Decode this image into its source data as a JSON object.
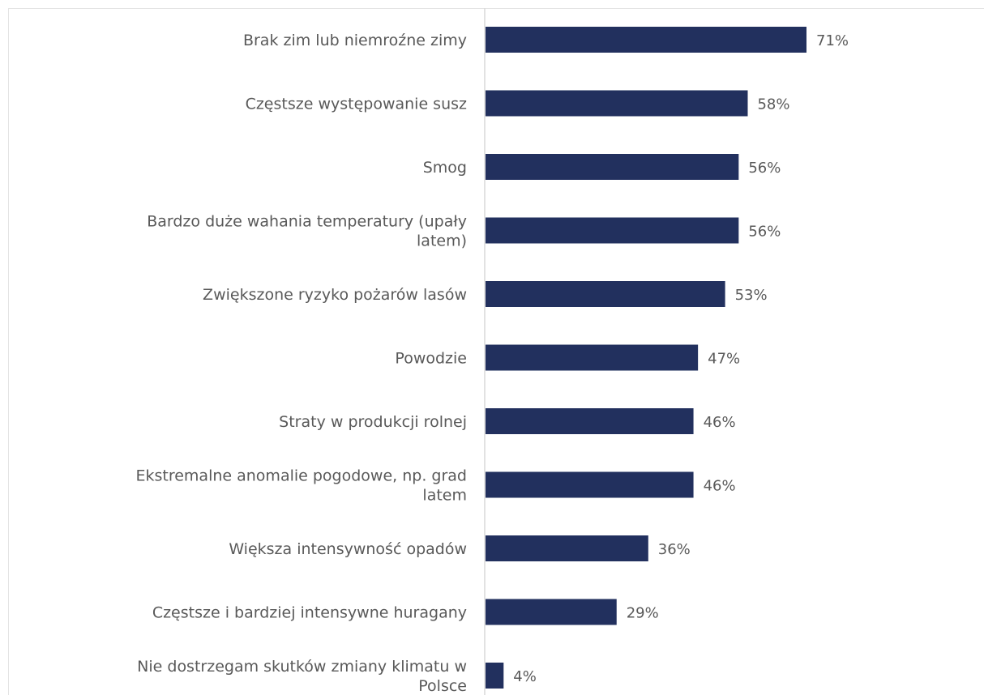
{
  "chart_data": {
    "type": "bar",
    "orientation": "horizontal",
    "title": "",
    "xlabel": "",
    "ylabel": "",
    "grid": false,
    "legend": "none",
    "bar_color": "#22305e",
    "axis_color": "#d9d9d9",
    "text_color": "#595959",
    "xlim": [
      0,
      100
    ],
    "value_suffix": "%",
    "categories": [
      [
        "Brak zim lub niemroźne zimy"
      ],
      [
        "Częstsze występowanie susz"
      ],
      [
        "Smog"
      ],
      [
        "Bardzo duże wahania temperatury (upały",
        "latem)"
      ],
      [
        "Zwiększone ryzyko pożarów lasów"
      ],
      [
        "Powodzie"
      ],
      [
        "Straty w produkcji rolnej"
      ],
      [
        "Ekstremalne anomalie pogodowe, np. grad",
        "latem"
      ],
      [
        "Większa intensywność opadów"
      ],
      [
        "Częstsze i bardziej intensywne huragany"
      ],
      [
        "Nie dostrzegam skutków zmiany klimatu w",
        "Polsce"
      ]
    ],
    "values": [
      71,
      58,
      56,
      56,
      53,
      47,
      46,
      46,
      36,
      29,
      4
    ]
  }
}
